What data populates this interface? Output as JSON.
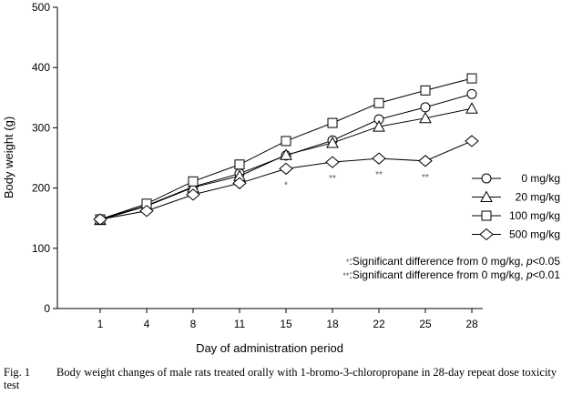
{
  "chart_data": {
    "type": "line",
    "xlabel": "Day of administration period",
    "ylabel": "Body weight (g)",
    "categories": [
      "1",
      "4",
      "8",
      "11",
      "15",
      "18",
      "22",
      "25",
      "28"
    ],
    "ylim": [
      0,
      500
    ],
    "yticks": [
      0,
      100,
      200,
      300,
      400,
      500
    ],
    "grid": false,
    "legend_position": "right",
    "series": [
      {
        "name": "0 mg/kg",
        "marker": "circle",
        "values": [
          148,
          171,
          202,
          224,
          254,
          279,
          314,
          334,
          356
        ]
      },
      {
        "name": "20 mg/kg",
        "marker": "triangle",
        "values": [
          147,
          170,
          201,
          220,
          255,
          275,
          302,
          316,
          332
        ]
      },
      {
        "name": "100 mg/kg",
        "marker": "square",
        "values": [
          148,
          174,
          211,
          239,
          278,
          308,
          341,
          362,
          382
        ]
      },
      {
        "name": "500 mg/kg",
        "marker": "diamond",
        "values": [
          148,
          162,
          189,
          208,
          232,
          243,
          249,
          245,
          278
        ]
      }
    ],
    "significance_marks": [
      {
        "category": "15",
        "mark": "*"
      },
      {
        "category": "18",
        "mark": "**"
      },
      {
        "category": "22",
        "mark": "**"
      },
      {
        "category": "25",
        "mark": "**"
      }
    ],
    "notes": [
      {
        "mark": "*",
        "text": ":Significant difference from 0 mg/kg, ",
        "p": "p",
        "rest": "<0.05"
      },
      {
        "mark": "**",
        "text": ":Significant difference from 0 mg/kg, ",
        "p": "p",
        "rest": "<0.01"
      }
    ]
  },
  "caption": {
    "label": "Fig. 1",
    "text": "Body weight changes of male rats treated orally with 1-bromo-3-chloropropane in 28-day repeat dose toxicity test"
  }
}
